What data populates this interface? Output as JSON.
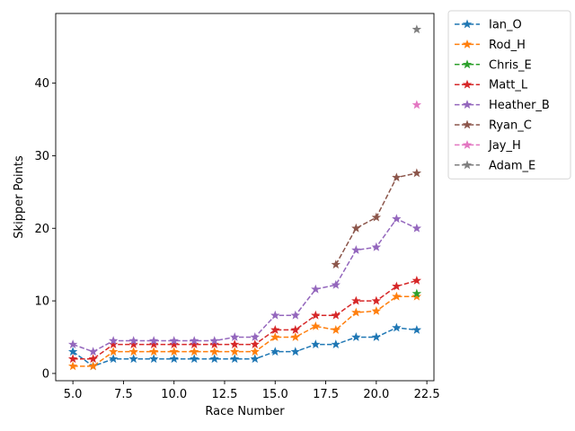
{
  "chart_data": {
    "type": "line",
    "title": "",
    "xlabel": "Race Number",
    "ylabel": "Skipper Points",
    "xlim": [
      4.15,
      22.85
    ],
    "ylim": [
      -1.0,
      49.6
    ],
    "xticks": [
      5.0,
      7.5,
      10.0,
      12.5,
      15.0,
      17.5,
      20.0,
      22.5
    ],
    "xtick_labels": [
      "5.0",
      "7.5",
      "10.0",
      "12.5",
      "15.0",
      "17.5",
      "20.0",
      "22.5"
    ],
    "yticks": [
      0,
      10,
      20,
      30,
      40
    ],
    "ytick_labels": [
      "0",
      "10",
      "20",
      "30",
      "40"
    ],
    "grid": false,
    "legend_placement": "outside-right",
    "marker": "star",
    "line_style": "dashed",
    "series": [
      {
        "name": "Ian_O",
        "color": "#1f77b4",
        "x": [
          5,
          6,
          7,
          8,
          9,
          10,
          11,
          12,
          13,
          14,
          15,
          16,
          17,
          18,
          19,
          20,
          21,
          22
        ],
        "y": [
          3,
          1,
          2,
          2,
          2,
          2,
          2,
          2,
          2,
          2,
          3,
          3,
          4,
          4,
          5,
          5,
          6.3,
          6
        ]
      },
      {
        "name": "Rod_H",
        "color": "#ff7f0e",
        "x": [
          5,
          6,
          7,
          8,
          9,
          10,
          11,
          12,
          13,
          14,
          15,
          16,
          17,
          18,
          19,
          20,
          21,
          22
        ],
        "y": [
          1,
          1,
          3,
          3,
          3,
          3,
          3,
          3,
          3,
          3,
          5,
          5,
          6.5,
          6,
          8.4,
          8.6,
          10.6,
          10.6
        ]
      },
      {
        "name": "Chris_E",
        "color": "#2ca02c",
        "x": [
          22
        ],
        "y": [
          11
        ]
      },
      {
        "name": "Matt_L",
        "color": "#d62728",
        "x": [
          5,
          6,
          7,
          8,
          9,
          10,
          11,
          12,
          13,
          14,
          15,
          16,
          17,
          18,
          19,
          20,
          21,
          22
        ],
        "y": [
          2,
          2,
          4,
          4,
          4,
          4,
          4,
          4,
          4,
          4,
          6,
          6,
          8,
          8,
          10,
          10,
          12,
          12.8
        ]
      },
      {
        "name": "Heather_B",
        "color": "#9467bd",
        "x": [
          5,
          6,
          7,
          8,
          9,
          10,
          11,
          12,
          13,
          14,
          15,
          16,
          17,
          18,
          19,
          20,
          21,
          22
        ],
        "y": [
          4,
          3,
          4.5,
          4.5,
          4.5,
          4.5,
          4.5,
          4.5,
          5,
          5,
          8,
          8,
          11.6,
          12.2,
          17,
          17.4,
          21.3,
          20
        ]
      },
      {
        "name": "Ryan_C",
        "color": "#8c564b",
        "x": [
          18,
          19,
          20,
          21,
          22
        ],
        "y": [
          15,
          20,
          21.5,
          27,
          27.6
        ]
      },
      {
        "name": "Jay_H",
        "color": "#e377c2",
        "x": [
          22
        ],
        "y": [
          37
        ]
      },
      {
        "name": "Adam_E",
        "color": "#7f7f7f",
        "x": [
          22
        ],
        "y": [
          47.4
        ]
      }
    ]
  }
}
